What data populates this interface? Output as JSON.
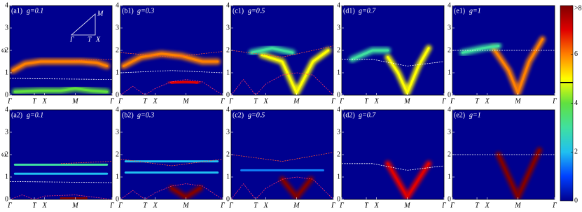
{
  "chart_data": [
    {
      "type": "heatmap",
      "label": "(a1)",
      "param": "g=0.1",
      "ylabel": "ω",
      "inset_labels": [
        "Γ",
        "T",
        "X",
        "M"
      ],
      "xlim": [
        0,
        1
      ],
      "ylim": [
        0,
        4
      ],
      "yticks": [
        0,
        1,
        2,
        3,
        4
      ],
      "xticks": [
        {
          "value": 0,
          "label": "Γ"
        },
        {
          "value": 0.24,
          "label": "T"
        },
        {
          "value": 0.34,
          "label": "X"
        },
        {
          "value": 0.64,
          "label": "M"
        },
        {
          "value": 1,
          "label": "Γ"
        }
      ],
      "ridges": [
        {
          "x": [
            0.03,
            0.15,
            0.3,
            0.5,
            0.7,
            0.85,
            0.95
          ],
          "y": [
            1.1,
            1.4,
            1.5,
            1.5,
            1.5,
            1.45,
            1.3
          ],
          "intensity": 6
        },
        {
          "x": [
            0.05,
            0.3,
            0.5,
            0.64,
            0.8,
            0.95
          ],
          "y": [
            0.15,
            0.2,
            0.2,
            0.3,
            0.2,
            0.15
          ],
          "intensity": 4
        }
      ],
      "curves": [
        {
          "x": [
            0,
            1
          ],
          "y": [
            0.75,
            0.7
          ],
          "color": "#ffffff"
        },
        {
          "x": [
            0.6,
            1
          ],
          "y": [
            1.55,
            1.6
          ],
          "color": "#ff5030"
        }
      ]
    },
    {
      "type": "heatmap",
      "label": "(b1)",
      "param": "g=0.3",
      "xlim": [
        0,
        1
      ],
      "ylim": [
        0,
        4
      ],
      "yticks": [
        0,
        1,
        2,
        3,
        4
      ],
      "xticks": [
        {
          "value": 0,
          "label": "Γ"
        },
        {
          "value": 0.24,
          "label": "T"
        },
        {
          "value": 0.34,
          "label": "X"
        },
        {
          "value": 0.64,
          "label": "M"
        },
        {
          "value": 1,
          "label": "Γ"
        }
      ],
      "ridges": [
        {
          "x": [
            0.03,
            0.2,
            0.4,
            0.6,
            0.8,
            0.95
          ],
          "y": [
            1.3,
            1.7,
            1.85,
            1.75,
            1.5,
            1.5
          ],
          "intensity": 6
        },
        {
          "x": [
            0.5,
            0.64,
            0.75
          ],
          "y": [
            0.55,
            0.6,
            0.55
          ],
          "intensity": 7
        }
      ],
      "curves": [
        {
          "x": [
            0,
            0.5,
            1
          ],
          "y": [
            1.9,
            1.7,
            1.95
          ],
          "color": "#ff5030"
        },
        {
          "x": [
            0,
            0.5,
            1
          ],
          "y": [
            1,
            1.1,
            1
          ],
          "color": "#ffffff"
        },
        {
          "x": [
            0,
            0.12,
            0.24,
            0.34,
            0.5,
            0.64,
            0.8,
            1
          ],
          "y": [
            0,
            0.4,
            0,
            0.3,
            0.6,
            0.7,
            0.6,
            0
          ],
          "color": "#ff3060"
        }
      ]
    },
    {
      "type": "heatmap",
      "label": "(c1)",
      "param": "g=0.5",
      "xlim": [
        0,
        1
      ],
      "ylim": [
        0,
        4
      ],
      "yticks": [
        0,
        1,
        2,
        3,
        4
      ],
      "xticks": [
        {
          "value": 0,
          "label": "Γ"
        },
        {
          "value": 0.24,
          "label": "T"
        },
        {
          "value": 0.34,
          "label": "X"
        },
        {
          "value": 0.64,
          "label": "M"
        },
        {
          "value": 1,
          "label": "Γ"
        }
      ],
      "ridges": [
        {
          "x": [
            0.3,
            0.5,
            0.64,
            0.8,
            0.95
          ],
          "y": [
            1.8,
            1.5,
            0.1,
            1.5,
            2.0
          ],
          "intensity": 5
        },
        {
          "x": [
            0.2,
            0.4,
            0.6
          ],
          "y": [
            1.9,
            2.1,
            1.9
          ],
          "intensity": 3
        }
      ],
      "curves": [
        {
          "x": [
            0,
            0.5,
            1
          ],
          "y": [
            2,
            1.7,
            2.2
          ],
          "color": "#ff5030"
        },
        {
          "x": [
            0,
            0.12,
            0.24,
            0.34,
            0.5,
            0.64,
            0.8,
            1
          ],
          "y": [
            0,
            0.7,
            0,
            0.5,
            0.9,
            1,
            0.9,
            0
          ],
          "color": "#ff3060"
        }
      ]
    },
    {
      "type": "heatmap",
      "label": "(d1)",
      "param": "g=0.7",
      "xlim": [
        0,
        1
      ],
      "ylim": [
        0,
        4
      ],
      "yticks": [
        0,
        1,
        2,
        3,
        4
      ],
      "xticks": [
        {
          "value": 0,
          "label": "Γ"
        },
        {
          "value": 0.24,
          "label": "T"
        },
        {
          "value": 0.34,
          "label": "X"
        },
        {
          "value": 0.64,
          "label": "M"
        },
        {
          "value": 1,
          "label": "Γ"
        }
      ],
      "ridges": [
        {
          "x": [
            0.45,
            0.55,
            0.64,
            0.75,
            0.85
          ],
          "y": [
            1.7,
            1.0,
            0.1,
            1.3,
            2.1
          ],
          "intensity": 5
        },
        {
          "x": [
            0.1,
            0.3,
            0.45
          ],
          "y": [
            1.6,
            2.0,
            2.0
          ],
          "intensity": 3
        }
      ],
      "curves": [
        {
          "x": [
            0,
            0.3,
            0.64,
            1
          ],
          "y": [
            1.6,
            1.6,
            1.3,
            1.5
          ],
          "color": "#ffffff"
        }
      ]
    },
    {
      "type": "heatmap",
      "label": "(e1)",
      "param": "g=1",
      "xlim": [
        0,
        1
      ],
      "ylim": [
        0,
        4
      ],
      "yticks": [
        0,
        1,
        2,
        3,
        4
      ],
      "xticks": [
        {
          "value": 0,
          "label": "Γ"
        },
        {
          "value": 0.24,
          "label": "T"
        },
        {
          "value": 0.34,
          "label": "X"
        },
        {
          "value": 0.64,
          "label": "M"
        },
        {
          "value": 1,
          "label": "Γ"
        }
      ],
      "ridges": [
        {
          "x": [
            0.4,
            0.55,
            0.64,
            0.75,
            0.88
          ],
          "y": [
            2.1,
            1.1,
            0.1,
            1.5,
            2.5
          ],
          "intensity": 6
        },
        {
          "x": [
            0.1,
            0.3,
            0.45
          ],
          "y": [
            1.9,
            2.1,
            2.2
          ],
          "intensity": 3
        }
      ],
      "curves": [
        {
          "x": [
            0,
            0.3,
            1
          ],
          "y": [
            2,
            2,
            2
          ],
          "color": "#ffffff"
        }
      ]
    },
    {
      "type": "heatmap",
      "label": "(a2)",
      "param": "g=0.1",
      "ylabel": "ω",
      "xlim": [
        0,
        1
      ],
      "ylim": [
        0,
        4
      ],
      "yticks": [
        0,
        1,
        2,
        3,
        4
      ],
      "xticks": [
        {
          "value": 0,
          "label": "Γ"
        },
        {
          "value": 0.24,
          "label": "T"
        },
        {
          "value": 0.34,
          "label": "X"
        },
        {
          "value": 0.64,
          "label": "M"
        },
        {
          "value": 1,
          "label": "Γ"
        }
      ],
      "ridges": [
        {
          "x": [
            0.05,
            0.95
          ],
          "y": [
            1.55,
            1.55
          ],
          "intensity": 3
        },
        {
          "x": [
            0.05,
            0.95
          ],
          "y": [
            1.15,
            1.15
          ],
          "intensity": 2
        },
        {
          "x": [
            0.5,
            0.64,
            0.75
          ],
          "y": [
            0.05,
            0.05,
            0.05
          ],
          "intensity": 8
        }
      ],
      "curves": [
        {
          "x": [
            0,
            0.12,
            0.24,
            0.34,
            0.64,
            1
          ],
          "y": [
            0,
            0.2,
            0,
            0.15,
            0.2,
            0
          ],
          "color": "#ff3060"
        },
        {
          "x": [
            0.5,
            1
          ],
          "y": [
            1.6,
            1.7
          ],
          "color": "#ff5030"
        },
        {
          "x": [
            0,
            1
          ],
          "y": [
            0.8,
            0.75
          ],
          "color": "#ffffff"
        }
      ]
    },
    {
      "type": "heatmap",
      "label": "(b2)",
      "param": "g=0.3",
      "xlim": [
        0,
        1
      ],
      "ylim": [
        0,
        4
      ],
      "yticks": [
        0,
        1,
        2,
        3,
        4
      ],
      "xticks": [
        {
          "value": 0,
          "label": "Γ"
        },
        {
          "value": 0.24,
          "label": "T"
        },
        {
          "value": 0.34,
          "label": "X"
        },
        {
          "value": 0.64,
          "label": "M"
        },
        {
          "value": 1,
          "label": "Γ"
        }
      ],
      "ridges": [
        {
          "x": [
            0.05,
            0.95
          ],
          "y": [
            1.7,
            1.7
          ],
          "intensity": 2
        },
        {
          "x": [
            0.05,
            0.95
          ],
          "y": [
            1.2,
            1.2
          ],
          "intensity": 2
        },
        {
          "x": [
            0.5,
            0.64,
            0.78
          ],
          "y": [
            0.5,
            0.1,
            0.5
          ],
          "intensity": 8
        }
      ],
      "curves": [
        {
          "x": [
            0,
            0.5,
            1
          ],
          "y": [
            1.8,
            1.5,
            1.8
          ],
          "color": "#ff5030"
        },
        {
          "x": [
            0,
            0.12,
            0.24,
            0.34,
            0.5,
            0.64,
            0.8,
            1
          ],
          "y": [
            0,
            0.4,
            0,
            0.3,
            0.6,
            0.7,
            0.6,
            0
          ],
          "color": "#ff3060"
        }
      ]
    },
    {
      "type": "heatmap",
      "label": "(c2)",
      "param": "g=0.5",
      "xlim": [
        0,
        1
      ],
      "ylim": [
        0,
        4
      ],
      "yticks": [
        0,
        1,
        2,
        3,
        4
      ],
      "xticks": [
        {
          "value": 0,
          "label": "Γ"
        },
        {
          "value": 0.24,
          "label": "T"
        },
        {
          "value": 0.34,
          "label": "X"
        },
        {
          "value": 0.64,
          "label": "M"
        },
        {
          "value": 1,
          "label": "Γ"
        }
      ],
      "ridges": [
        {
          "x": [
            0.5,
            0.64,
            0.78
          ],
          "y": [
            0.9,
            0.1,
            0.9
          ],
          "intensity": 8
        },
        {
          "x": [
            0.1,
            0.9
          ],
          "y": [
            1.3,
            1.3
          ],
          "intensity": 1.5
        }
      ],
      "curves": [
        {
          "x": [
            0,
            0.5,
            1
          ],
          "y": [
            2,
            1.7,
            2.1
          ],
          "color": "#ff5030"
        },
        {
          "x": [
            0,
            0.12,
            0.24,
            0.34,
            0.5,
            0.64,
            0.8,
            1
          ],
          "y": [
            0,
            0.7,
            0,
            0.5,
            0.9,
            1,
            0.9,
            0
          ],
          "color": "#ff3060"
        }
      ]
    },
    {
      "type": "heatmap",
      "label": "(d2)",
      "param": "g=0.7",
      "xlim": [
        0,
        1
      ],
      "ylim": [
        0,
        4
      ],
      "yticks": [
        0,
        1,
        2,
        3,
        4
      ],
      "xticks": [
        {
          "value": 0,
          "label": "Γ"
        },
        {
          "value": 0.24,
          "label": "T"
        },
        {
          "value": 0.34,
          "label": "X"
        },
        {
          "value": 0.64,
          "label": "M"
        },
        {
          "value": 1,
          "label": "Γ"
        }
      ],
      "ridges": [
        {
          "x": [
            0.45,
            0.64,
            0.85
          ],
          "y": [
            1.6,
            0.1,
            1.6
          ],
          "intensity": 7
        }
      ],
      "curves": [
        {
          "x": [
            0,
            0.3,
            0.64,
            1
          ],
          "y": [
            1.6,
            1.6,
            1.3,
            1.5
          ],
          "color": "#ffffff"
        }
      ]
    },
    {
      "type": "heatmap",
      "label": "(e2)",
      "param": "g=1",
      "xlim": [
        0,
        1
      ],
      "ylim": [
        0,
        4
      ],
      "yticks": [
        0,
        1,
        2,
        3,
        4
      ],
      "xticks": [
        {
          "value": 0,
          "label": "Γ"
        },
        {
          "value": 0.24,
          "label": "T"
        },
        {
          "value": 0.34,
          "label": "X"
        },
        {
          "value": 0.64,
          "label": "M"
        },
        {
          "value": 1,
          "label": "Γ"
        }
      ],
      "ridges": [
        {
          "x": [
            0.45,
            0.64,
            0.85
          ],
          "y": [
            2,
            0.1,
            2.2
          ],
          "intensity": 8
        }
      ],
      "curves": [
        {
          "x": [
            0,
            0.3,
            1
          ],
          "y": [
            2,
            2,
            2
          ],
          "color": "#ffffff"
        }
      ]
    }
  ],
  "colorbar": {
    "lim": [
      0,
      8
    ],
    "ticks": [
      0,
      2,
      4,
      6,
      {
        "value": 8,
        "label": ">8"
      }
    ],
    "colors": [
      "#00008f",
      "#0040ff",
      "#20c0f0",
      "#40e0a0",
      "#60e040",
      "#ffff00",
      "#ff8000",
      "#e00000",
      "#800000"
    ]
  }
}
